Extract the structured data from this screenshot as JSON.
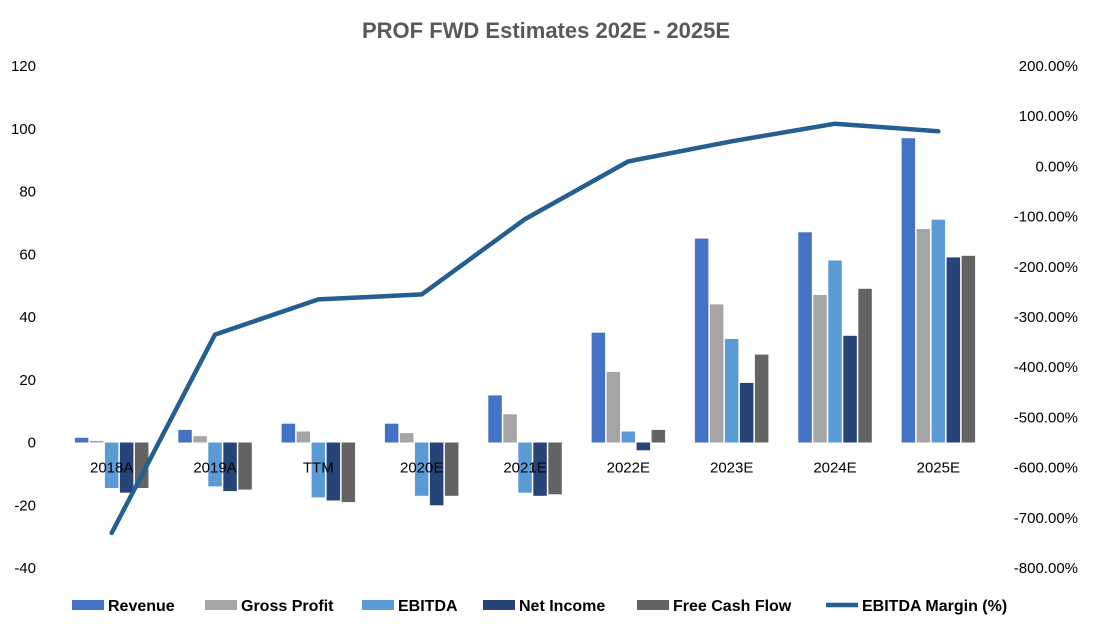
{
  "chart_data": {
    "type": "bar",
    "title": "PROF FWD Estimates 202E - 2025E",
    "xlabel": "",
    "ylabel": "",
    "ylim": [
      -40,
      120
    ],
    "y2lim": [
      -800,
      200
    ],
    "y_ticks": [
      "120",
      "100",
      "80",
      "60",
      "40",
      "20",
      "0",
      "-20",
      "-40"
    ],
    "y2_ticks": [
      "200.00%",
      "100.00%",
      "0.00%",
      "-100.00%",
      "-200.00%",
      "-300.00%",
      "-400.00%",
      "-500.00%",
      "-600.00%",
      "-700.00%",
      "-800.00%"
    ],
    "categories": [
      "2018A",
      "2019A",
      "TTM",
      "2020E",
      "2021E",
      "2022E",
      "2023E",
      "2024E",
      "2025E"
    ],
    "series": [
      {
        "name": "Revenue",
        "type": "bar",
        "axis": "left",
        "color": "#4472C4",
        "values": [
          1.5,
          4,
          6,
          6,
          15,
          35,
          65,
          67,
          97
        ]
      },
      {
        "name": "Gross Profit",
        "type": "bar",
        "axis": "left",
        "color": "#A5A5A5",
        "values": [
          0.5,
          2,
          3.5,
          3,
          9,
          22.5,
          44,
          47,
          68
        ]
      },
      {
        "name": "EBITDA",
        "type": "bar",
        "axis": "left",
        "color": "#5B9BD5",
        "values": [
          -14.5,
          -14,
          -17.5,
          -17,
          -16,
          3.5,
          33,
          58,
          71
        ]
      },
      {
        "name": "Net Income",
        "type": "bar",
        "axis": "left",
        "color": "#264478",
        "values": [
          -16,
          -15.5,
          -18.5,
          -20,
          -17,
          -2.5,
          19,
          34,
          59
        ]
      },
      {
        "name": "Free Cash Flow",
        "type": "bar",
        "axis": "left",
        "color": "#636363",
        "values": [
          -14.5,
          -15,
          -19,
          -17,
          -16.5,
          4,
          28,
          49,
          59.5
        ]
      },
      {
        "name": "EBITDA Margin (%)",
        "type": "line",
        "axis": "right",
        "color": "#255E91",
        "values": [
          -730,
          -335,
          -265,
          -255,
          -105,
          10,
          50,
          85,
          70
        ]
      }
    ],
    "legend_position": "bottom",
    "grid": false
  }
}
